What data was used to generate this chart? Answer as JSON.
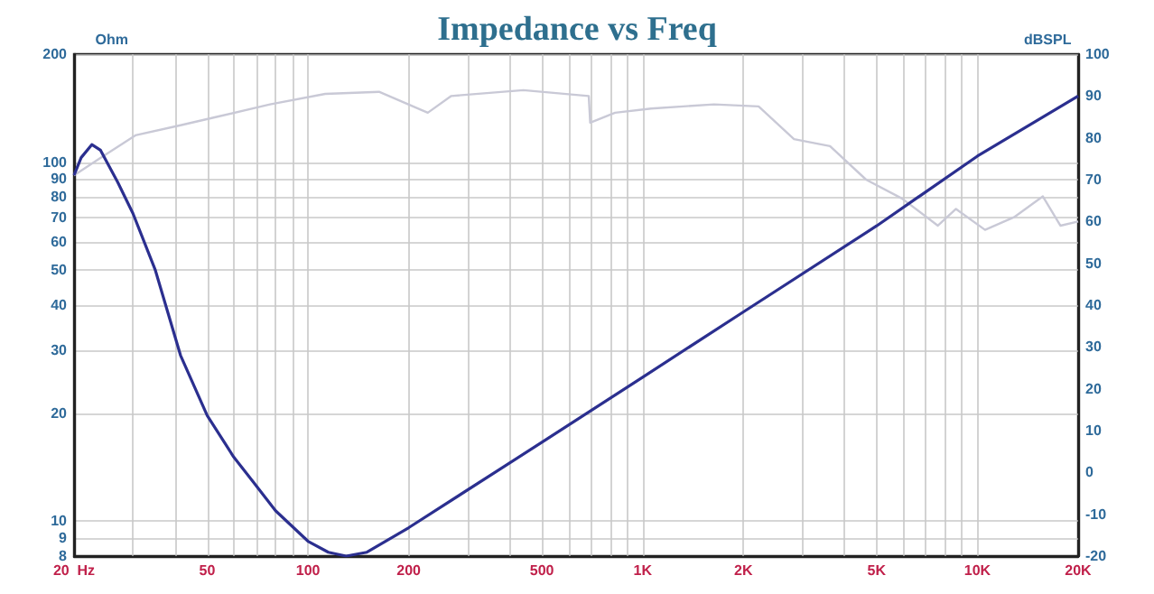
{
  "chart_data": {
    "type": "line",
    "title": "Impedance vs Freq",
    "ylabel": "Ohm",
    "y2label": "dBSPL",
    "log": "xy",
    "grid": true,
    "marker": "none",
    "line_style": "solid",
    "xlim": [
      20,
      20000
    ],
    "xticks": [
      {
        "value": 20,
        "label": "20  Hz"
      },
      {
        "value": 30,
        "label": null
      },
      {
        "value": 40,
        "label": null
      },
      {
        "value": 50,
        "label": "50"
      },
      {
        "value": 60,
        "label": null
      },
      {
        "value": 70,
        "label": null
      },
      {
        "value": 80,
        "label": null
      },
      {
        "value": 90,
        "label": null
      },
      {
        "value": 100,
        "label": "100"
      },
      {
        "value": 200,
        "label": "200"
      },
      {
        "value": 300,
        "label": null
      },
      {
        "value": 400,
        "label": null
      },
      {
        "value": 500,
        "label": "500"
      },
      {
        "value": 600,
        "label": null
      },
      {
        "value": 700,
        "label": null
      },
      {
        "value": 800,
        "label": null
      },
      {
        "value": 900,
        "label": null
      },
      {
        "value": 1000,
        "label": "1K"
      },
      {
        "value": 2000,
        "label": "2K"
      },
      {
        "value": 3000,
        "label": null
      },
      {
        "value": 4000,
        "label": null
      },
      {
        "value": 5000,
        "label": "5K"
      },
      {
        "value": 6000,
        "label": null
      },
      {
        "value": 7000,
        "label": null
      },
      {
        "value": 8000,
        "label": null
      },
      {
        "value": 9000,
        "label": null
      },
      {
        "value": 10000,
        "label": "10K"
      },
      {
        "value": 20000,
        "label": "20K"
      }
    ],
    "ylim": [
      8,
      200
    ],
    "yticks": [
      8,
      9,
      10,
      20,
      30,
      40,
      50,
      60,
      70,
      80,
      90,
      100,
      200
    ],
    "y2lim": [
      -20,
      100
    ],
    "y2ticks": [
      -20,
      -10,
      0,
      10,
      20,
      30,
      40,
      50,
      60,
      70,
      80,
      90,
      100
    ],
    "series": [
      {
        "color": "#c9c9d6",
        "axis": "y2",
        "x": [
          20,
          23.8,
          30.5,
          41.6,
          53.3,
          77,
          112.6,
          163,
          228,
          268,
          440,
          690,
          697,
          827,
          1060,
          1634,
          2220,
          2832,
          3628,
          4650,
          5950,
          7620,
          8630,
          10540,
          12860,
          15690,
          17700,
          20000
        ],
        "values": [
          71,
          75,
          80.6,
          83,
          85,
          88,
          90.5,
          91,
          86,
          90,
          91.4,
          90,
          83.6,
          86,
          87,
          88,
          87.5,
          79.7,
          78,
          70,
          65.5,
          59,
          63,
          58,
          61,
          66,
          59,
          60
        ]
      },
      {
        "color": "#2b2f8f",
        "x": [
          20,
          21,
          22.6,
          24,
          27,
          30,
          35,
          41.6,
          50,
          60,
          68.5,
          80,
          100,
          115,
          130,
          150,
          200,
          500,
          1000,
          2000,
          5000,
          10000,
          20000
        ],
        "values": [
          92,
          103,
          112,
          108,
          88,
          72,
          50,
          29,
          19.7,
          15.1,
          12.9,
          10.7,
          8.8,
          8.2,
          8,
          8.2,
          9.6,
          16.6,
          25.2,
          38.3,
          66.5,
          104,
          153
        ]
      }
    ]
  }
}
